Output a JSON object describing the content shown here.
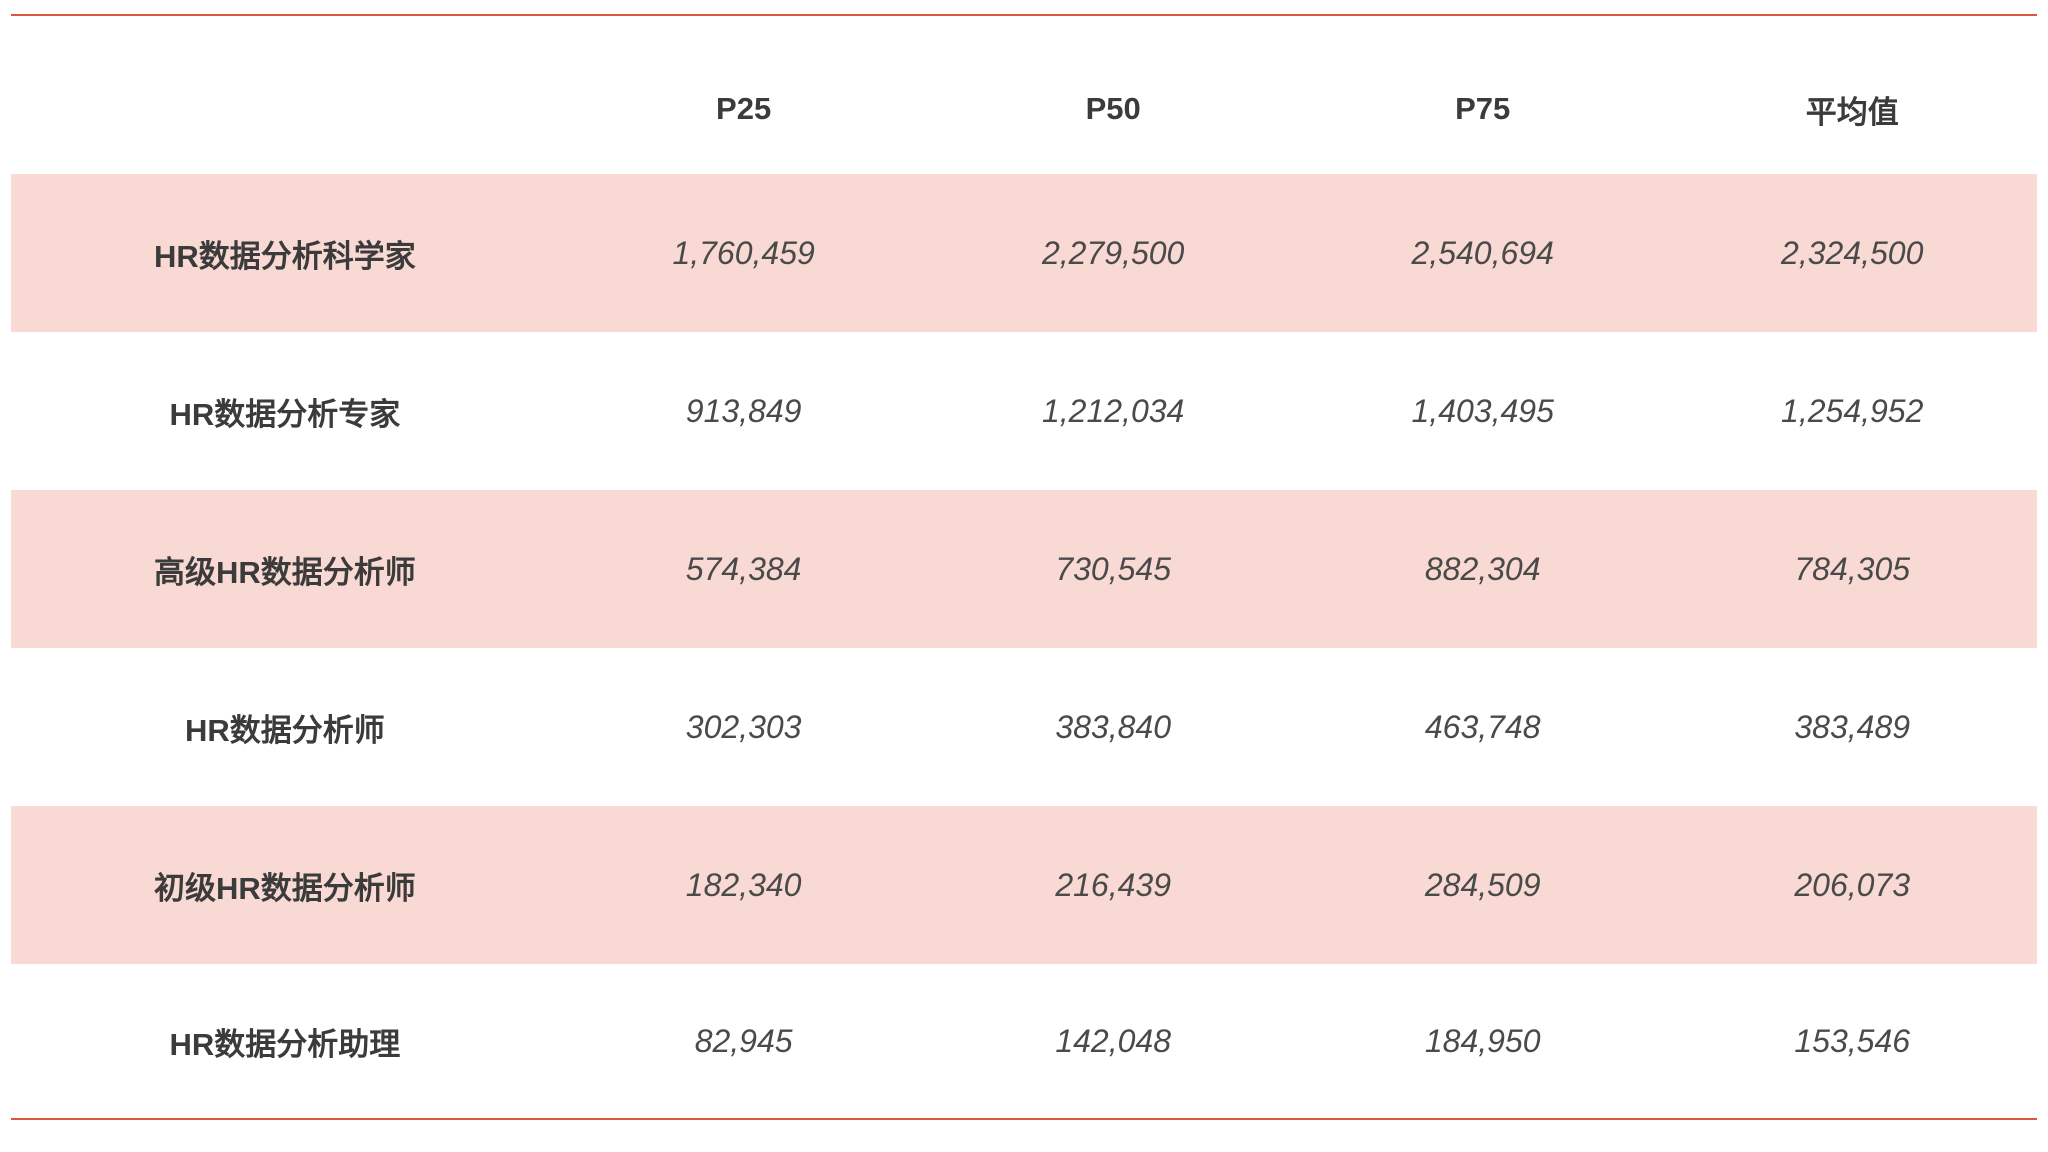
{
  "table": {
    "columns": [
      "",
      "P25",
      "P50",
      "P75",
      "平均值"
    ],
    "rows": [
      {
        "label": "HR数据分析科学家",
        "values": [
          "1,760,459",
          "2,279,500",
          "2,540,694",
          "2,324,500"
        ]
      },
      {
        "label": "HR数据分析专家",
        "values": [
          "913,849",
          "1,212,034",
          "1,403,495",
          "1,254,952"
        ]
      },
      {
        "label": "高级HR数据分析师",
        "values": [
          "574,384",
          "730,545",
          "882,304",
          "784,305"
        ]
      },
      {
        "label": "HR数据分析师",
        "values": [
          "302,303",
          "383,840",
          "463,748",
          "383,489"
        ]
      },
      {
        "label": "初级HR数据分析师",
        "values": [
          "182,340",
          "216,439",
          "284,509",
          "206,073"
        ]
      },
      {
        "label": "HR数据分析助理",
        "values": [
          "82,945",
          "142,048",
          "184,950",
          "153,546"
        ]
      }
    ]
  },
  "colors": {
    "rule": "#d9573f",
    "shaded_row": "#f8d9d3",
    "text": "#3b3b3b"
  }
}
